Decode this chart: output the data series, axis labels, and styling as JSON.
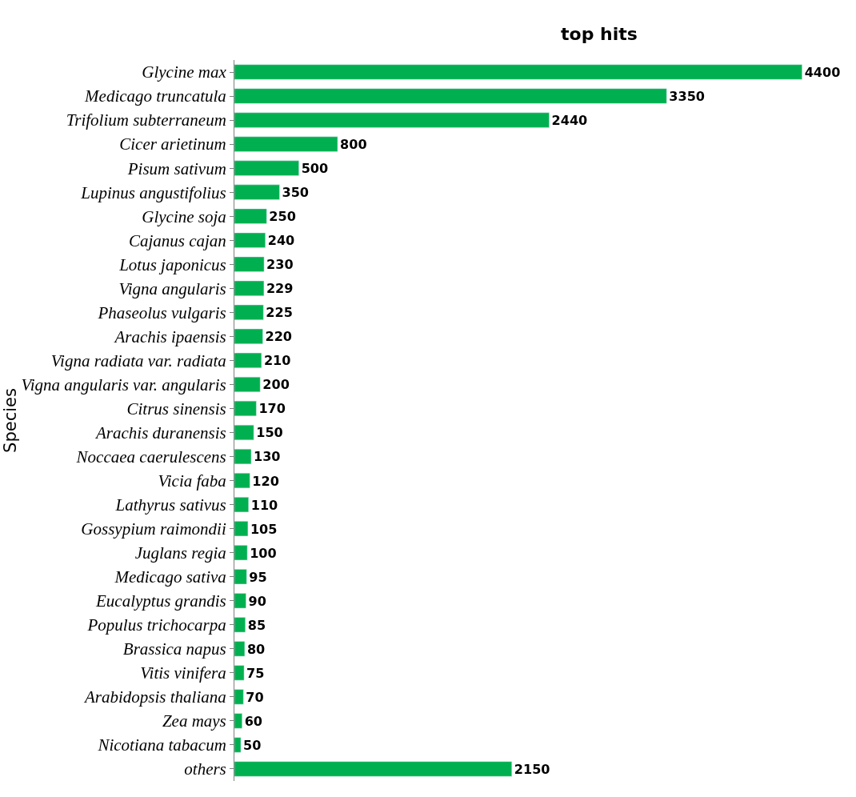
{
  "chart_data": {
    "type": "bar",
    "orientation": "horizontal",
    "title": "top hits",
    "ylabel": "Species",
    "categories": [
      "Glycine max",
      "Medicago truncatula",
      "Trifolium subterraneum",
      "Cicer arietinum",
      "Pisum sativum",
      "Lupinus angustifolius",
      "Glycine soja",
      "Cajanus cajan",
      "Lotus japonicus",
      "Vigna angularis",
      "Phaseolus vulgaris",
      "Arachis ipaensis",
      "Vigna radiata var. radiata",
      "Vigna angularis var. angularis",
      "Citrus sinensis",
      "Arachis duranensis",
      "Noccaea caerulescens",
      "Vicia faba",
      "Lathyrus sativus",
      "Gossypium raimondii",
      "Juglans regia",
      "Medicago sativa",
      "Eucalyptus grandis",
      "Populus trichocarpa",
      "Brassica napus",
      "Vitis vinifera",
      "Arabidopsis thaliana",
      "Zea mays",
      "Nicotiana tabacum",
      "others"
    ],
    "values": [
      4400,
      3350,
      2440,
      800,
      500,
      350,
      250,
      240,
      230,
      229,
      225,
      220,
      210,
      200,
      170,
      150,
      130,
      120,
      110,
      105,
      100,
      95,
      90,
      85,
      80,
      75,
      70,
      60,
      50,
      2150
    ],
    "color": "#00b050",
    "data_labels": true
  }
}
